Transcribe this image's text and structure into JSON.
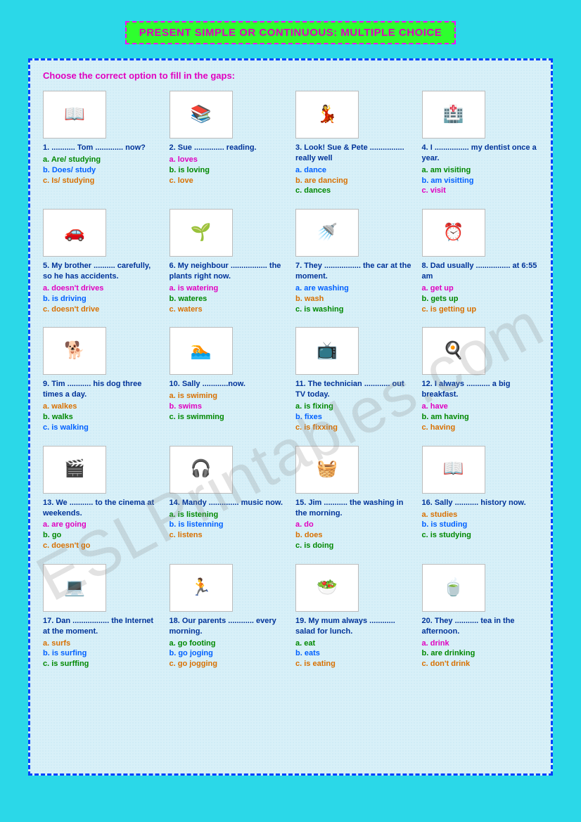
{
  "title": "PRESENT SIMPLE OR CONTINUOUS: MULTIPLE CHOICE",
  "instruction": "Choose the correct option to fill in the gaps:",
  "watermark": "ESLPrintables.com",
  "optionColors": {
    "green": "#008800",
    "pink": "#e000c0",
    "blue": "#0060ff",
    "orange": "#d87000"
  },
  "items": [
    {
      "n": 1,
      "emoji": "📖",
      "stem": "1. ........... Tom ............. now?",
      "opts": [
        {
          "t": "a. Are/ studying",
          "c": "green"
        },
        {
          "t": "b. Does/ study",
          "c": "blue"
        },
        {
          "t": "c. Is/ studying",
          "c": "orange"
        }
      ]
    },
    {
      "n": 2,
      "emoji": "📚",
      "stem": "2. Sue .............. reading.",
      "opts": [
        {
          "t": "a. loves",
          "c": "pink"
        },
        {
          "t": "b. is loving",
          "c": "green"
        },
        {
          "t": "c. love",
          "c": "orange"
        }
      ]
    },
    {
      "n": 3,
      "emoji": "💃",
      "stem": "3. Look! Sue & Pete ................ really well",
      "opts": [
        {
          "t": "a. dance",
          "c": "blue"
        },
        {
          "t": "b. are dancing",
          "c": "orange"
        },
        {
          "t": "c. dances",
          "c": "green"
        }
      ]
    },
    {
      "n": 4,
      "emoji": "🏥",
      "stem": "4. I ................ my dentist once a year.",
      "opts": [
        {
          "t": "a. am visiting",
          "c": "green"
        },
        {
          "t": "b. am visitting",
          "c": "blue"
        },
        {
          "t": "c. visit",
          "c": "pink"
        }
      ]
    },
    {
      "n": 5,
      "emoji": "🚗",
      "stem": "5. My brother .......... carefully, so he has accidents.",
      "opts": [
        {
          "t": "a. doesn't drives",
          "c": "pink"
        },
        {
          "t": "b. is driving",
          "c": "blue"
        },
        {
          "t": "c. doesn't drive",
          "c": "orange"
        }
      ]
    },
    {
      "n": 6,
      "emoji": "🌱",
      "stem": "6. My neighbour ................. the plants right now.",
      "opts": [
        {
          "t": "a. is watering",
          "c": "pink"
        },
        {
          "t": "b. wateres",
          "c": "green"
        },
        {
          "t": "c. waters",
          "c": "orange"
        }
      ]
    },
    {
      "n": 7,
      "emoji": "🚿",
      "stem": "7. They ................. the car at the moment.",
      "opts": [
        {
          "t": "a. are washing",
          "c": "blue"
        },
        {
          "t": "b. wash",
          "c": "orange"
        },
        {
          "t": "c. is washing",
          "c": "green"
        }
      ]
    },
    {
      "n": 8,
      "emoji": "⏰",
      "stem": "8. Dad usually ................ at 6:55 am",
      "opts": [
        {
          "t": "a. get up",
          "c": "pink"
        },
        {
          "t": "b. gets up",
          "c": "green"
        },
        {
          "t": "c. is getting up",
          "c": "orange"
        }
      ]
    },
    {
      "n": 9,
      "emoji": "🐕",
      "stem": "9. Tim ........... his dog three times a day.",
      "opts": [
        {
          "t": "a. walkes",
          "c": "orange"
        },
        {
          "t": "b. walks",
          "c": "green"
        },
        {
          "t": "c. is walking",
          "c": "blue"
        }
      ]
    },
    {
      "n": 10,
      "emoji": "🏊",
      "stem": "10. Sally ............now.",
      "opts": [
        {
          "t": "a. is swiming",
          "c": "orange"
        },
        {
          "t": "b. swims",
          "c": "pink"
        },
        {
          "t": "c. is swimming",
          "c": "green"
        }
      ]
    },
    {
      "n": 11,
      "emoji": "📺",
      "stem": "11. The technician ............ out TV today.",
      "opts": [
        {
          "t": "a. is fixing",
          "c": "green"
        },
        {
          "t": "b. fixes",
          "c": "blue"
        },
        {
          "t": "c. is fixxing",
          "c": "orange"
        }
      ]
    },
    {
      "n": 12,
      "emoji": "🍳",
      "stem": "12. I always ........... a big breakfast.",
      "opts": [
        {
          "t": "a. have",
          "c": "pink"
        },
        {
          "t": "b. am having",
          "c": "green"
        },
        {
          "t": "c. having",
          "c": "orange"
        }
      ]
    },
    {
      "n": 13,
      "emoji": "🎬",
      "stem": "13. We ........... to the cinema at weekends.",
      "opts": [
        {
          "t": "a. are going",
          "c": "pink"
        },
        {
          "t": "b. go",
          "c": "green"
        },
        {
          "t": "c. doesn't  go",
          "c": "orange"
        }
      ]
    },
    {
      "n": 14,
      "emoji": "🎧",
      "stem": "14. Mandy .............. music now.",
      "opts": [
        {
          "t": "a. is listening",
          "c": "green"
        },
        {
          "t": "b. is listenning",
          "c": "blue"
        },
        {
          "t": "c. listens",
          "c": "orange"
        }
      ]
    },
    {
      "n": 15,
      "emoji": "🧺",
      "stem": "15. Jim ........... the washing in the morning.",
      "opts": [
        {
          "t": "a. do",
          "c": "pink"
        },
        {
          "t": "b. does",
          "c": "orange"
        },
        {
          "t": "c. is doing",
          "c": "green"
        }
      ]
    },
    {
      "n": 16,
      "emoji": "📖",
      "stem": "16. Sally ........... history now.",
      "opts": [
        {
          "t": "a. studies",
          "c": "orange"
        },
        {
          "t": "b. is studing",
          "c": "blue"
        },
        {
          "t": "c. is studying",
          "c": "green"
        }
      ]
    },
    {
      "n": 17,
      "emoji": "💻",
      "stem": "17. Dan ................. the Internet at the moment.",
      "opts": [
        {
          "t": "a. surfs",
          "c": "orange"
        },
        {
          "t": "b. is surfing",
          "c": "blue"
        },
        {
          "t": "c. is surffing",
          "c": "green"
        }
      ]
    },
    {
      "n": 18,
      "emoji": "🏃",
      "stem": "18. Our parents ............ every morning.",
      "opts": [
        {
          "t": "a. go footing",
          "c": "green"
        },
        {
          "t": "b. go joging",
          "c": "blue"
        },
        {
          "t": "c. go jogging",
          "c": "orange"
        }
      ]
    },
    {
      "n": 19,
      "emoji": "🥗",
      "stem": "19. My mum always ............ salad for lunch.",
      "opts": [
        {
          "t": "a. eat",
          "c": "green"
        },
        {
          "t": "b. eats",
          "c": "blue"
        },
        {
          "t": "c. is eating",
          "c": "orange"
        }
      ]
    },
    {
      "n": 20,
      "emoji": "🍵",
      "stem": "20. They ........... tea in the afternoon.",
      "opts": [
        {
          "t": "a. drink",
          "c": "pink"
        },
        {
          "t": "b. are drinking",
          "c": "green"
        },
        {
          "t": "c. don't drink",
          "c": "orange"
        }
      ]
    }
  ]
}
